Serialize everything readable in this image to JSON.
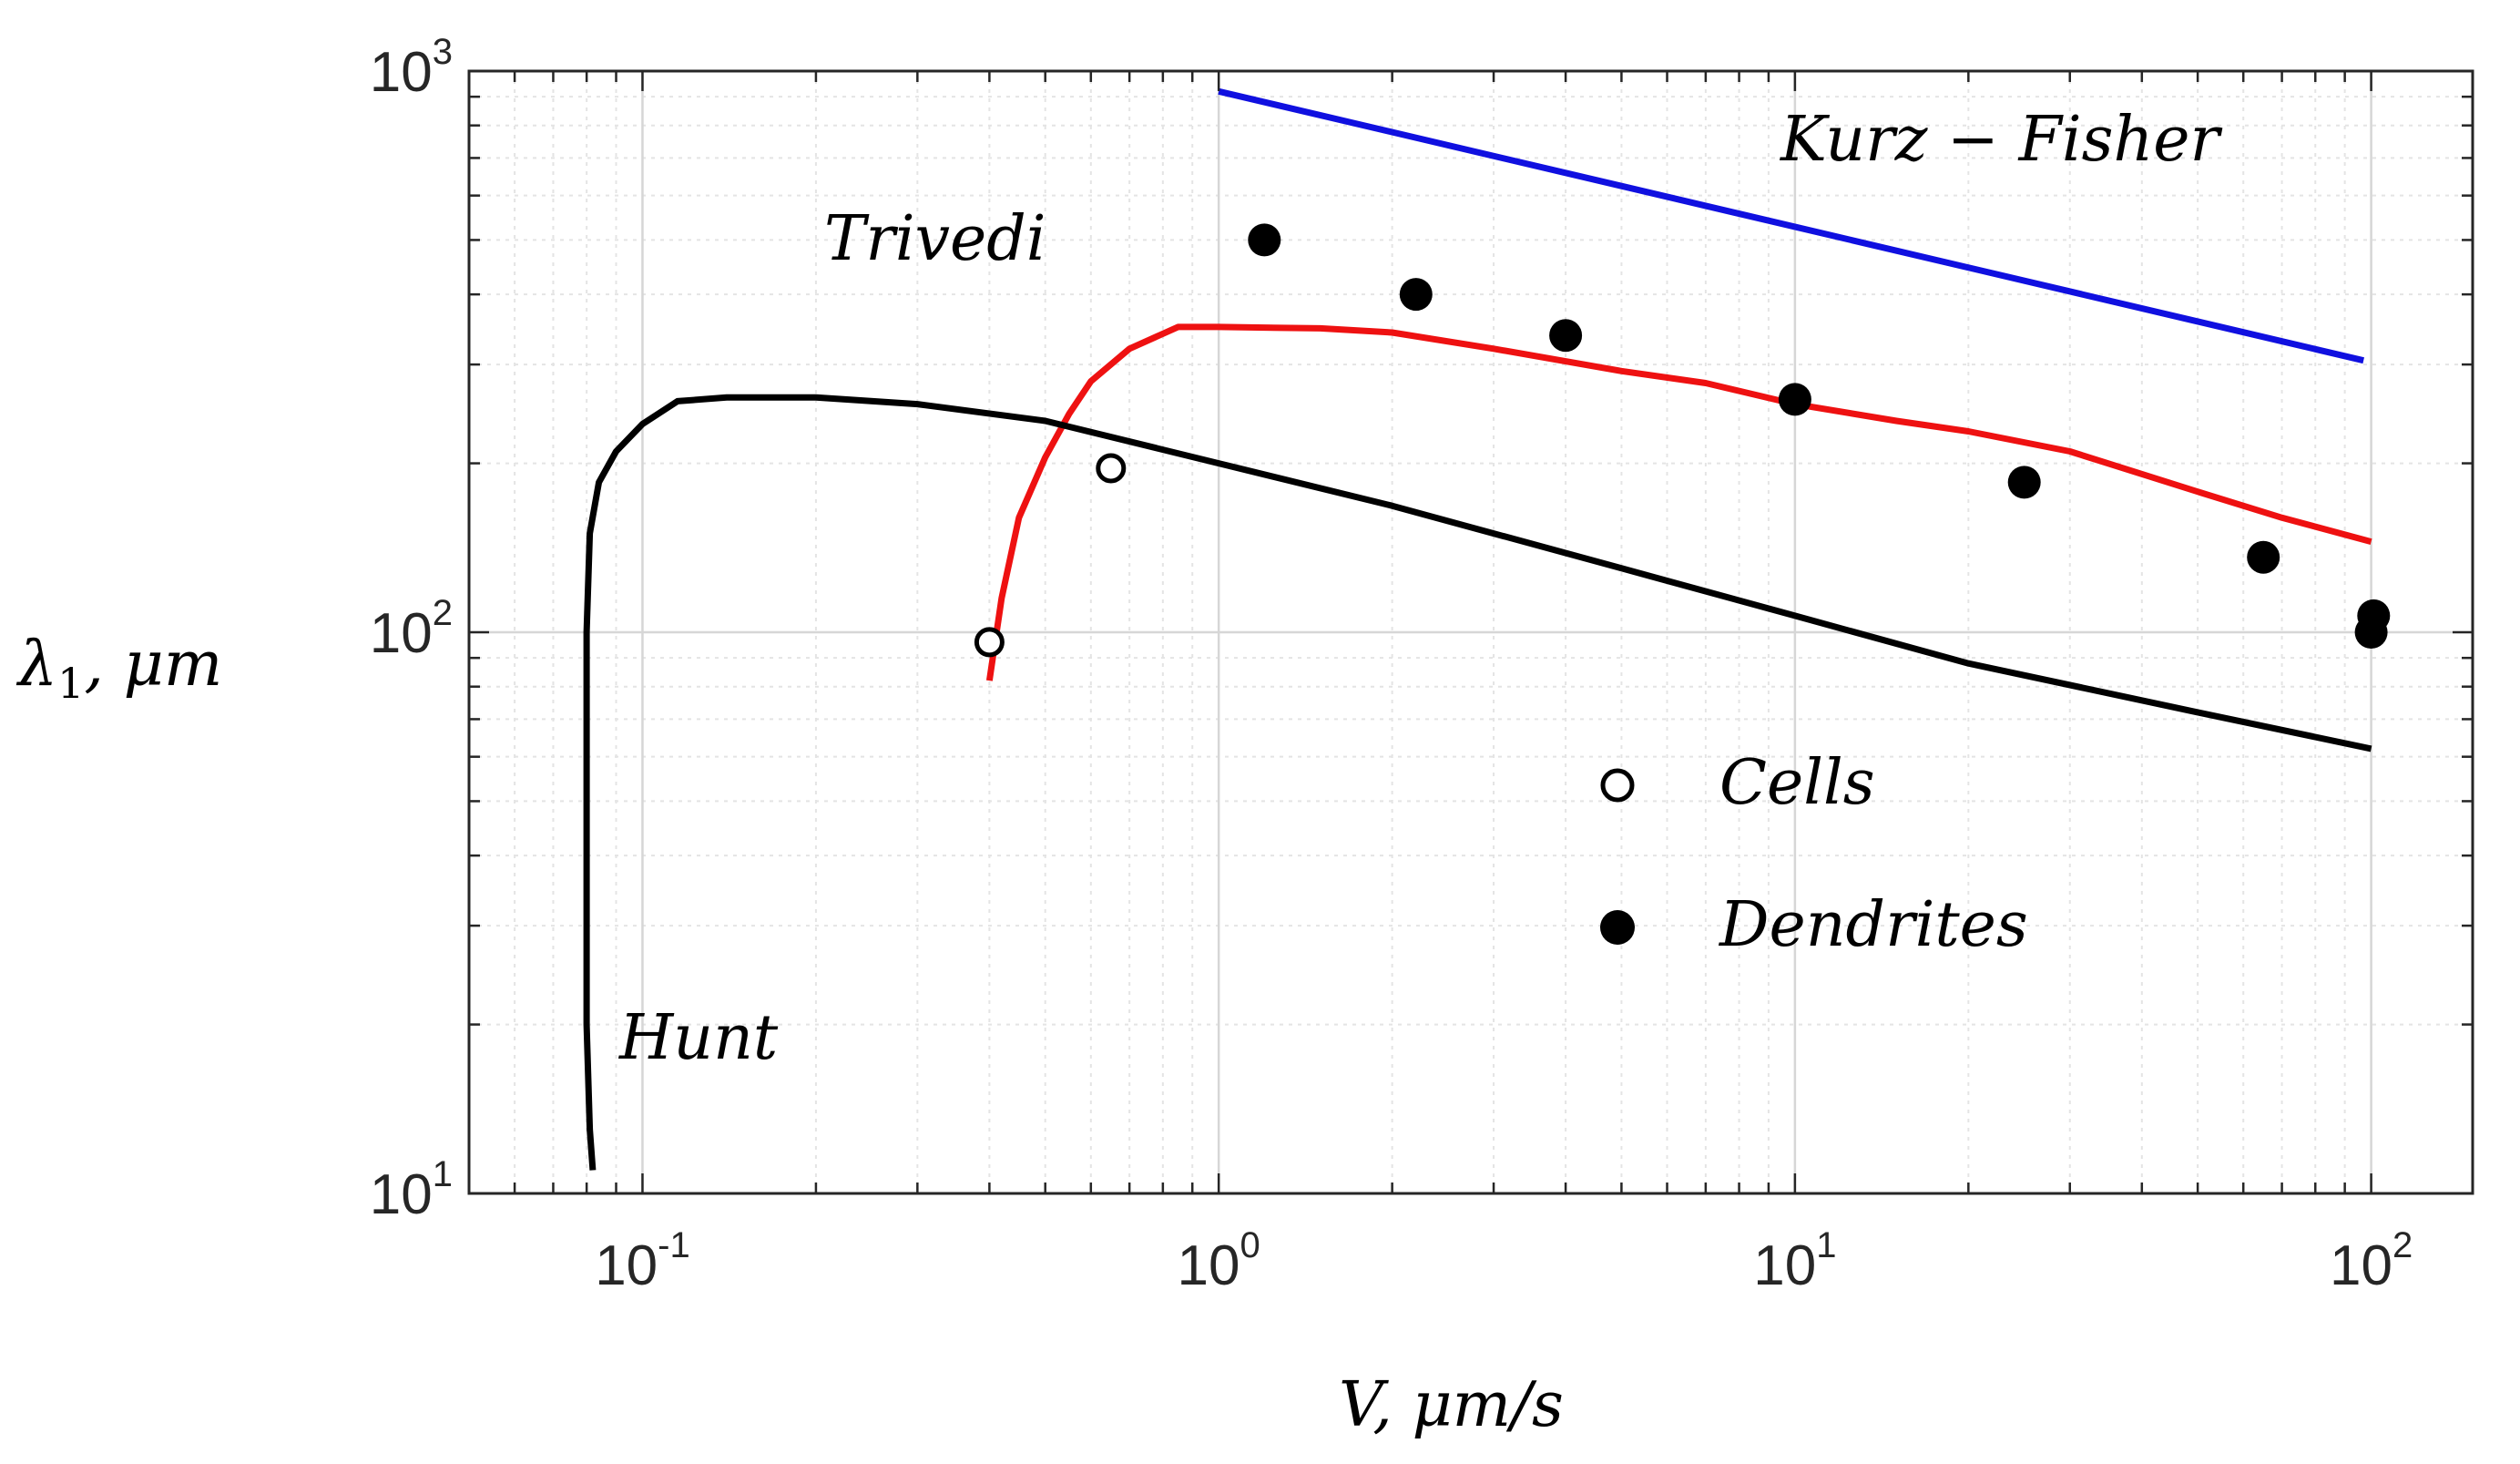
{
  "chart_data": {
    "type": "line",
    "title": "",
    "xlabel": "V, μm/s",
    "ylabel": "λ₁, μm",
    "ylabel_parts": {
      "base": "λ",
      "sub": "1",
      "tail": ", μm"
    },
    "xscale": "log",
    "yscale": "log",
    "xlim": [
      0.05,
      150
    ],
    "ylim": [
      10,
      1000
    ],
    "grid": true,
    "x_ticks": [
      {
        "value": 0.1,
        "base": "10",
        "exp": "-1"
      },
      {
        "value": 1,
        "base": "10",
        "exp": "0"
      },
      {
        "value": 10,
        "base": "10",
        "exp": "1"
      },
      {
        "value": 100,
        "base": "10",
        "exp": "2"
      }
    ],
    "y_ticks": [
      {
        "value": 10,
        "base": "10",
        "exp": "1"
      },
      {
        "value": 100,
        "base": "10",
        "exp": "2"
      },
      {
        "value": 1000,
        "base": "10",
        "exp": "3"
      }
    ],
    "series": [
      {
        "name": "Kurz – Fisher",
        "color": "#1010e0",
        "kind": "line",
        "x": [
          1.0,
          97
        ],
        "y": [
          920,
          305
        ]
      },
      {
        "name": "Trivedi",
        "color": "#ee1111",
        "kind": "line",
        "x": [
          0.4,
          0.42,
          0.45,
          0.5,
          0.55,
          0.6,
          0.7,
          0.85,
          1.0,
          1.5,
          2,
          3,
          5,
          7,
          10,
          15,
          20,
          30,
          50,
          70,
          100
        ],
        "y": [
          82,
          115,
          160,
          205,
          245,
          280,
          320,
          350,
          350,
          348,
          342,
          320,
          292,
          278,
          255,
          238,
          228,
          210,
          178,
          160,
          145
        ]
      },
      {
        "name": "Hunt",
        "color": "#000000",
        "kind": "line",
        "x": [
          0.082,
          0.081,
          0.08,
          0.08,
          0.08,
          0.081,
          0.084,
          0.09,
          0.1,
          0.115,
          0.14,
          0.2,
          0.3,
          0.5,
          1,
          2,
          5,
          10,
          20,
          50,
          100
        ],
        "y": [
          11,
          13,
          20,
          50,
          100,
          150,
          185,
          210,
          235,
          258,
          262,
          262,
          255,
          238,
          200,
          168,
          130,
          107,
          88,
          72,
          62
        ]
      },
      {
        "name": "Cells",
        "color": "#000000",
        "kind": "scatter",
        "marker": "open-circle",
        "x": [
          0.4,
          0.65
        ],
        "y": [
          96,
          196
        ]
      },
      {
        "name": "Dendrites",
        "color": "#000000",
        "kind": "scatter",
        "marker": "filled-circle",
        "x": [
          1.2,
          2.2,
          4.0,
          10.0,
          25,
          65,
          100,
          101
        ],
        "y": [
          500,
          400,
          338,
          260,
          185,
          136,
          100,
          107
        ]
      }
    ],
    "annotations": [
      {
        "text": "Kurz − Fisher",
        "target": "Kurz – Fisher"
      },
      {
        "text": "Trivedi",
        "target": "Trivedi"
      },
      {
        "text": "Hunt",
        "target": "Hunt"
      }
    ],
    "legend": {
      "placement": "center",
      "entries": [
        {
          "label": "Cells",
          "marker": "open-circle"
        },
        {
          "label": "Dendrites",
          "marker": "filled-circle"
        }
      ]
    }
  }
}
